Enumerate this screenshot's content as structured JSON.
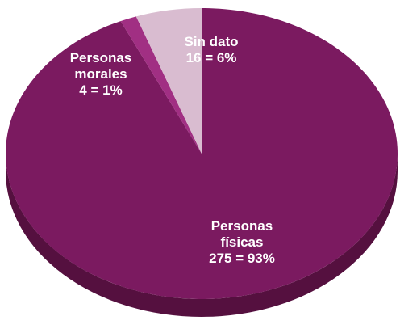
{
  "chart_data": {
    "type": "pie",
    "categories": [
      "Personas físicas",
      "Personas morales",
      "Sin dato"
    ],
    "values": [
      275,
      4,
      16
    ],
    "value_labels": [
      "275 = 93%",
      "4 = 1%",
      "16 = 6%"
    ],
    "colors": [
      "#7b1a60",
      "#a12f83",
      "#d9bcd0"
    ]
  }
}
